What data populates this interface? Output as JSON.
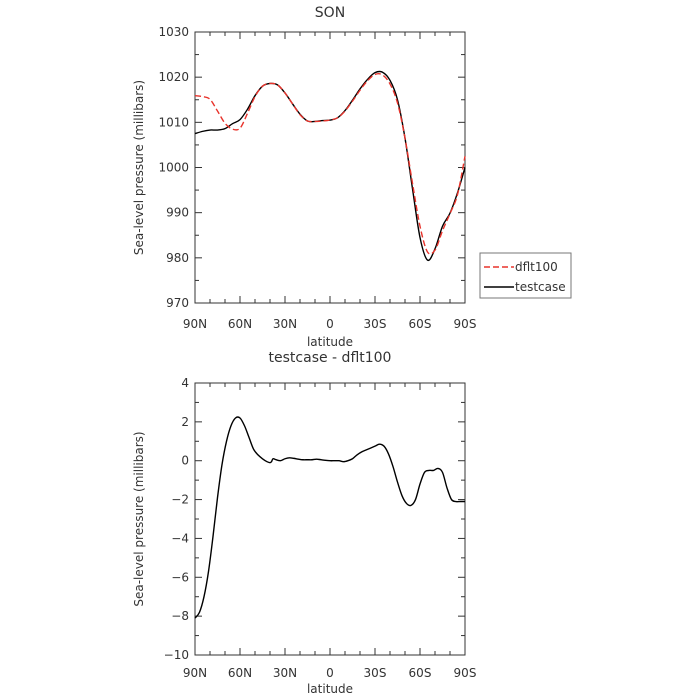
{
  "colors": {
    "dflt100": "#e8332b",
    "testcase": "#000000",
    "axis": "#333333"
  },
  "chart_data": [
    {
      "type": "line",
      "title": "SON",
      "xlabel": "latitude",
      "ylabel": "Sea-level pressure (millibars)",
      "xlim": [
        90,
        -90
      ],
      "ylim": [
        970,
        1030
      ],
      "x_ticks": [
        {
          "value": 90,
          "label": "90N"
        },
        {
          "value": 60,
          "label": "60N"
        },
        {
          "value": 30,
          "label": "30N"
        },
        {
          "value": 0,
          "label": "0"
        },
        {
          "value": -30,
          "label": "30S"
        },
        {
          "value": -60,
          "label": "60S"
        },
        {
          "value": -90,
          "label": "90S"
        }
      ],
      "y_ticks": [
        {
          "value": 970,
          "label": "970"
        },
        {
          "value": 980,
          "label": "980"
        },
        {
          "value": 990,
          "label": "990"
        },
        {
          "value": 1000,
          "label": "1000"
        },
        {
          "value": 1010,
          "label": "1010"
        },
        {
          "value": 1020,
          "label": "1020"
        },
        {
          "value": 1030,
          "label": "1030"
        }
      ],
      "legend": {
        "placement": "right",
        "entries": [
          {
            "name": "dflt100",
            "style": "dashed"
          },
          {
            "name": "testcase",
            "style": "solid"
          }
        ]
      },
      "series": [
        {
          "name": "dflt100",
          "style": "dashed",
          "x": [
            90,
            85,
            80,
            75,
            70,
            65,
            60,
            55,
            50,
            45,
            40,
            35,
            30,
            25,
            20,
            15,
            10,
            5,
            0,
            -5,
            -10,
            -15,
            -20,
            -25,
            -30,
            -35,
            -40,
            -45,
            -50,
            -55,
            -60,
            -65,
            -70,
            -75,
            -80,
            -85,
            -90
          ],
          "y": [
            1015.9,
            1015.7,
            1015.1,
            1012.5,
            1009.8,
            1008.5,
            1008.7,
            1012.0,
            1015.7,
            1018.0,
            1018.6,
            1018.3,
            1016.5,
            1014.1,
            1011.7,
            1010.3,
            1010.2,
            1010.3,
            1010.5,
            1011.0,
            1012.5,
            1014.7,
            1017.1,
            1019.2,
            1020.6,
            1020.5,
            1018.5,
            1014.3,
            1006.5,
            996.5,
            987.0,
            981.3,
            981.7,
            986.0,
            989.8,
            994.0,
            1002.5
          ]
        },
        {
          "name": "testcase",
          "style": "solid",
          "x": [
            90,
            85,
            80,
            75,
            70,
            65,
            60,
            55,
            50,
            45,
            40,
            35,
            30,
            25,
            20,
            15,
            10,
            5,
            0,
            -5,
            -10,
            -15,
            -20,
            -25,
            -30,
            -35,
            -40,
            -45,
            -50,
            -55,
            -60,
            -65,
            -70,
            -75,
            -80,
            -85,
            -90
          ],
          "y": [
            1007.5,
            1008.0,
            1008.3,
            1008.3,
            1008.6,
            1009.7,
            1010.6,
            1012.9,
            1015.9,
            1018.0,
            1018.6,
            1018.3,
            1016.5,
            1014.1,
            1011.8,
            1010.3,
            1010.2,
            1010.4,
            1010.5,
            1011.0,
            1012.6,
            1014.9,
            1017.4,
            1019.5,
            1021.0,
            1021.1,
            1019.3,
            1015.0,
            1006.5,
            995.3,
            984.5,
            979.5,
            982.0,
            987.0,
            989.9,
            994.4,
            1000.0
          ]
        }
      ]
    },
    {
      "type": "line",
      "title": "testcase - dflt100",
      "xlabel": "latitude",
      "ylabel": "Sea-level pressure (millibars)",
      "xlim": [
        90,
        -90
      ],
      "ylim": [
        -10,
        4
      ],
      "x_ticks": [
        {
          "value": 90,
          "label": "90N"
        },
        {
          "value": 60,
          "label": "60N"
        },
        {
          "value": 30,
          "label": "30N"
        },
        {
          "value": 0,
          "label": "0"
        },
        {
          "value": -30,
          "label": "30S"
        },
        {
          "value": -60,
          "label": "60S"
        },
        {
          "value": -90,
          "label": "90S"
        }
      ],
      "y_ticks": [
        {
          "value": -10,
          "label": "−10"
        },
        {
          "value": -8,
          "label": "−8"
        },
        {
          "value": -6,
          "label": "−6"
        },
        {
          "value": -4,
          "label": "−4"
        },
        {
          "value": -2,
          "label": "−2"
        },
        {
          "value": 0,
          "label": "0"
        },
        {
          "value": 2,
          "label": "2"
        },
        {
          "value": 4,
          "label": "4"
        }
      ],
      "series": [
        {
          "name": "testcase - dflt100",
          "style": "solid",
          "x": [
            90,
            87,
            84,
            81,
            78,
            75,
            72,
            69,
            66,
            63,
            60,
            57,
            54,
            51,
            48,
            45,
            42,
            40,
            39,
            38,
            36,
            33,
            30,
            27,
            24,
            21,
            18,
            15,
            12,
            9,
            6,
            3,
            0,
            -3,
            -6,
            -9,
            -12,
            -15,
            -18,
            -21,
            -24,
            -27,
            -30,
            -33,
            -36,
            -39,
            -42,
            -45,
            -48,
            -51,
            -54,
            -57,
            -60,
            -63,
            -66,
            -69,
            -72,
            -75,
            -78,
            -81,
            -84,
            -87,
            -90
          ],
          "y": [
            -8.1,
            -7.8,
            -7.0,
            -5.7,
            -3.9,
            -1.9,
            -0.2,
            1.0,
            1.8,
            2.2,
            2.2,
            1.8,
            1.2,
            0.6,
            0.3,
            0.1,
            -0.05,
            -0.1,
            -0.05,
            0.1,
            0.05,
            0.0,
            0.1,
            0.15,
            0.12,
            0.08,
            0.05,
            0.05,
            0.05,
            0.08,
            0.05,
            0.02,
            0.0,
            0.0,
            0.0,
            -0.05,
            0.0,
            0.1,
            0.3,
            0.45,
            0.55,
            0.65,
            0.75,
            0.85,
            0.75,
            0.35,
            -0.3,
            -1.1,
            -1.8,
            -2.2,
            -2.3,
            -2.0,
            -1.2,
            -0.6,
            -0.5,
            -0.5,
            -0.4,
            -0.6,
            -1.4,
            -2.0,
            -2.1,
            -2.1,
            -2.1
          ]
        }
      ]
    }
  ]
}
